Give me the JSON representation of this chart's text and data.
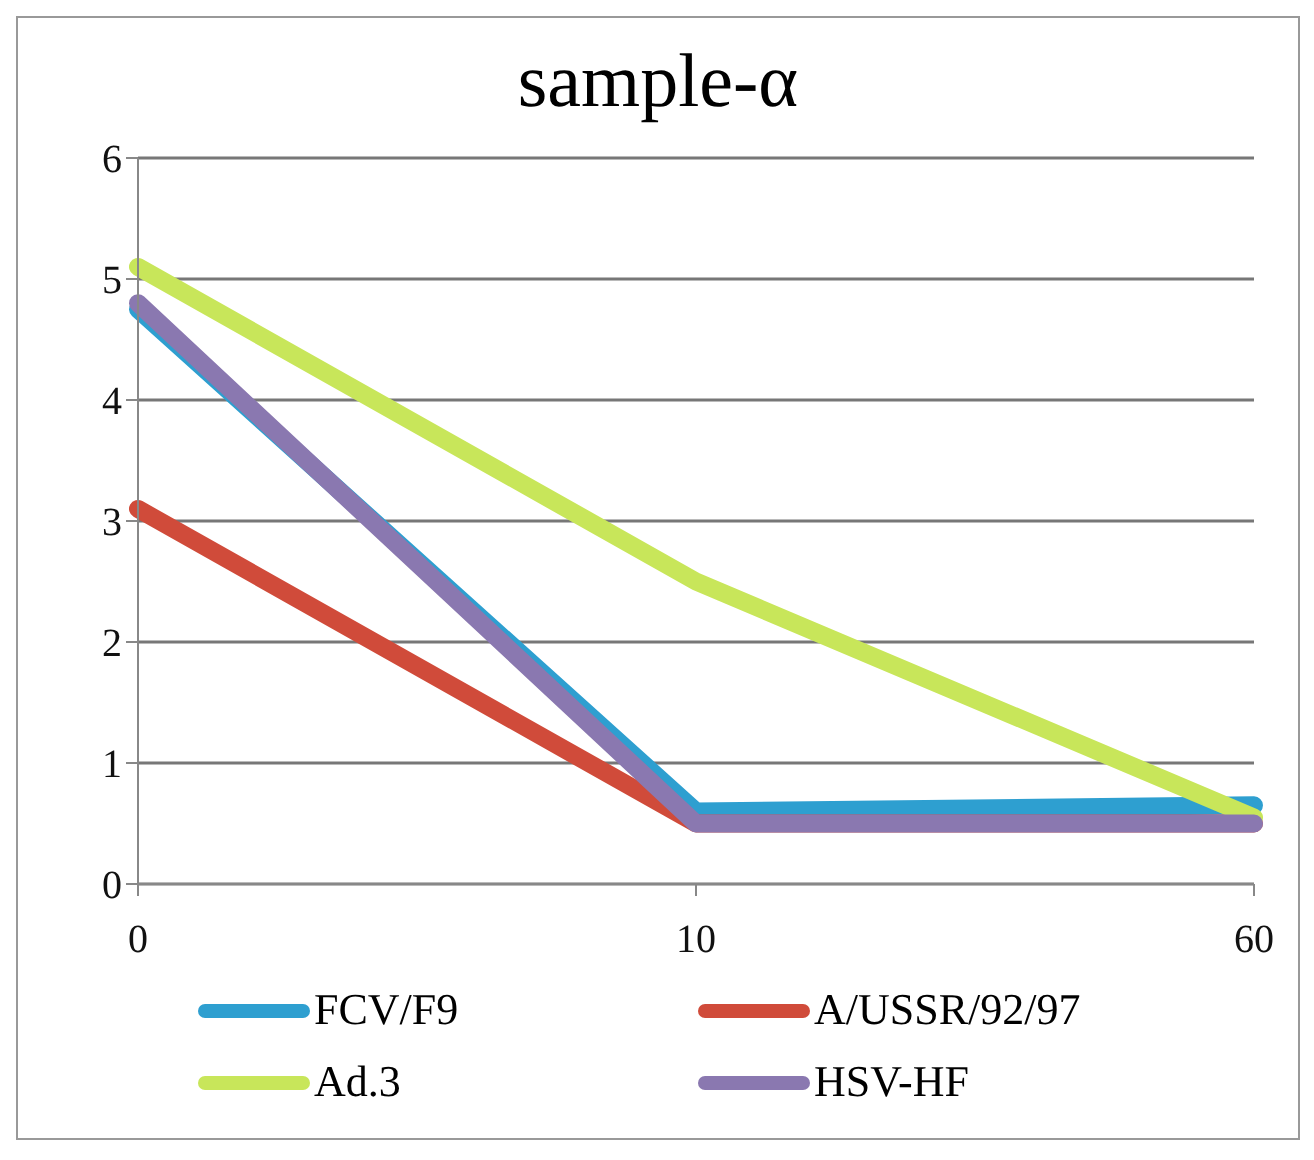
{
  "chart_data": {
    "type": "line",
    "title": "sample-α",
    "categories": [
      "0",
      "10",
      "60"
    ],
    "series": [
      {
        "name": "FCV/F9",
        "color": "#2e9fd0",
        "values": [
          4.75,
          0.6,
          0.65
        ]
      },
      {
        "name": "A/USSR/92/97",
        "color": "#d04b3a",
        "values": [
          3.1,
          0.5,
          0.5
        ]
      },
      {
        "name": "Ad.3",
        "color": "#c8e65a",
        "values": [
          5.1,
          2.5,
          0.55
        ]
      },
      {
        "name": "HSV-HF",
        "color": "#8a78b0",
        "values": [
          4.8,
          0.5,
          0.5
        ]
      }
    ],
    "ylim": [
      0,
      6
    ],
    "yticks": [
      0,
      1,
      2,
      3,
      4,
      5,
      6
    ],
    "grid": "y",
    "legend": "bottom",
    "marker": "none",
    "line_style": "solid"
  }
}
